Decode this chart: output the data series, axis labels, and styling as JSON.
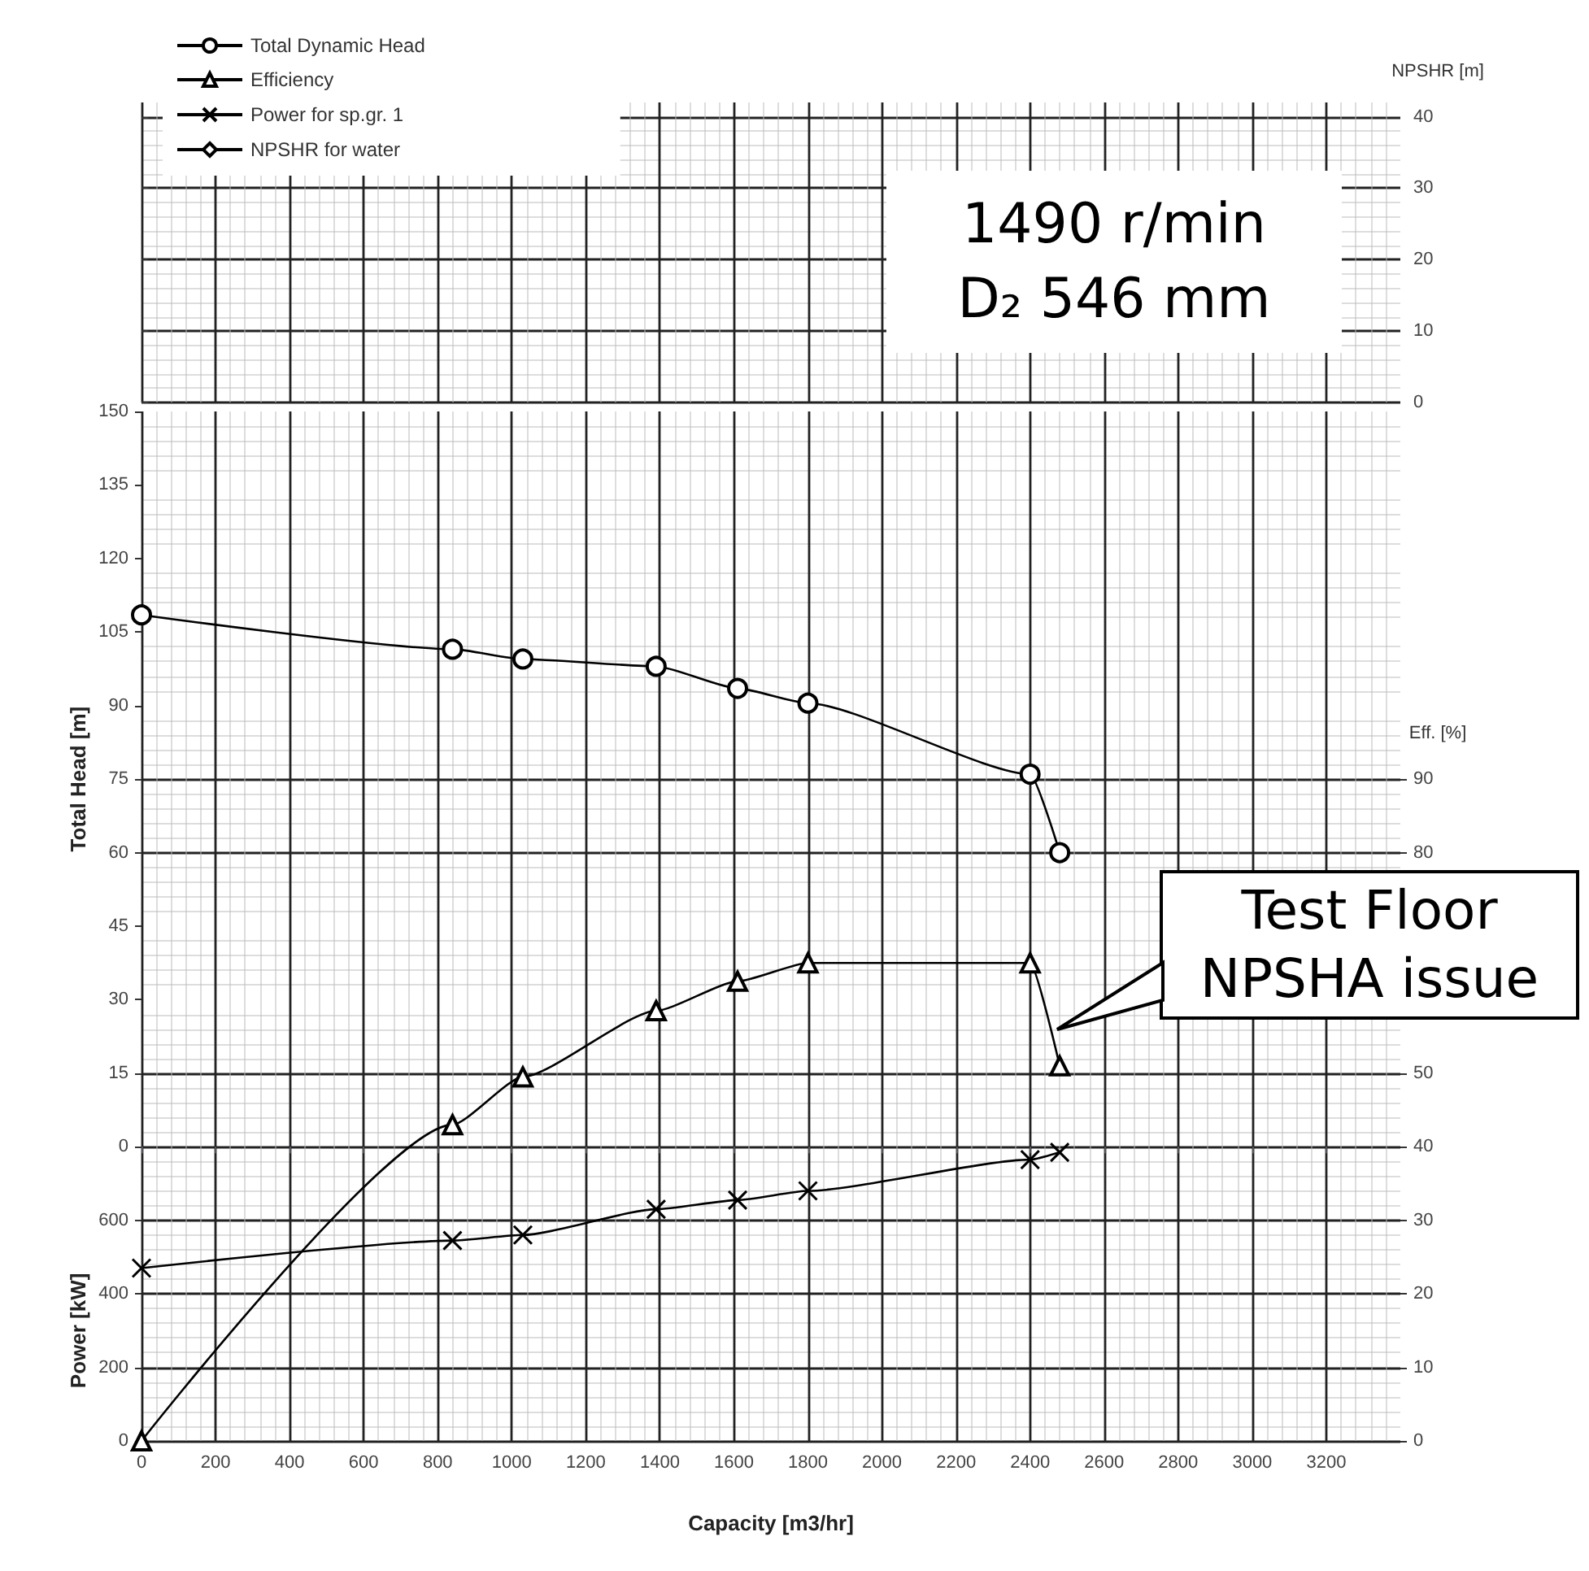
{
  "chart_data": [
    {
      "type": "line",
      "xlim": [
        0,
        3400
      ],
      "xticks": [
        0,
        200,
        400,
        600,
        800,
        1000,
        1200,
        1400,
        1600,
        1800,
        2000,
        2200,
        2400,
        2600,
        2800,
        3000,
        3200
      ],
      "y2label": "NPSHR [m]",
      "y2lim": [
        0,
        42
      ],
      "y2ticks": [
        0,
        10,
        20,
        30,
        40
      ],
      "grid": true,
      "tick_labels": "y",
      "annotations": [
        "1490 r/min",
        "D₂ 546 mm"
      ]
    },
    {
      "type": "line",
      "xlabel": "Capacity [m3/hr]",
      "ylabel": "Total Head [m]",
      "y2label": "Eff. [%]",
      "y3label": "Power [kW]",
      "xlim": [
        0,
        3400
      ],
      "xticks": [
        0,
        200,
        400,
        600,
        800,
        1000,
        1200,
        1400,
        1600,
        1800,
        2000,
        2200,
        2400,
        2600,
        2800,
        3000,
        3200
      ],
      "ylim": [
        -60,
        150
      ],
      "yticks": [
        0,
        15,
        30,
        45,
        60,
        75,
        90,
        105,
        120,
        135,
        150
      ],
      "y2lim": [
        0,
        140
      ],
      "y2ticks": [
        0,
        10,
        20,
        30,
        40,
        50,
        80,
        90
      ],
      "y3lim": [
        0,
        2800
      ],
      "y3ticks": [
        0,
        200,
        400,
        600
      ],
      "grid": true,
      "legend": "top left",
      "line_style": "solid",
      "series": [
        {
          "name": "Total Dynamic Head",
          "color": "#000000",
          "marker": "circle",
          "axis": "y",
          "x": [
            0,
            840,
            1030,
            1390,
            1610,
            1800,
            2400,
            2480
          ],
          "values": [
            108.5,
            101.5,
            99.5,
            98,
            93.5,
            90.5,
            76,
            60
          ]
        },
        {
          "name": "Efficiency",
          "color": "#000000",
          "marker": "triangle",
          "axis": "y2",
          "x": [
            0,
            840,
            1030,
            1390,
            1610,
            1800,
            2400,
            2480
          ],
          "values": [
            0,
            43,
            49.5,
            58.5,
            62.5,
            65,
            65,
            51
          ]
        },
        {
          "name": "Power for sp.gr. 1",
          "color": "#000000",
          "marker": "cross",
          "axis": "y3",
          "x": [
            0,
            840,
            1030,
            1390,
            1610,
            1800,
            2400,
            2480
          ],
          "values": [
            470,
            545,
            560,
            630,
            655,
            680,
            765,
            785
          ]
        },
        {
          "name": "NPSHR for water",
          "color": "#000000",
          "marker": "diamond"
        }
      ],
      "annotations": [
        "Test Floor NPSHA issue"
      ]
    }
  ]
}
